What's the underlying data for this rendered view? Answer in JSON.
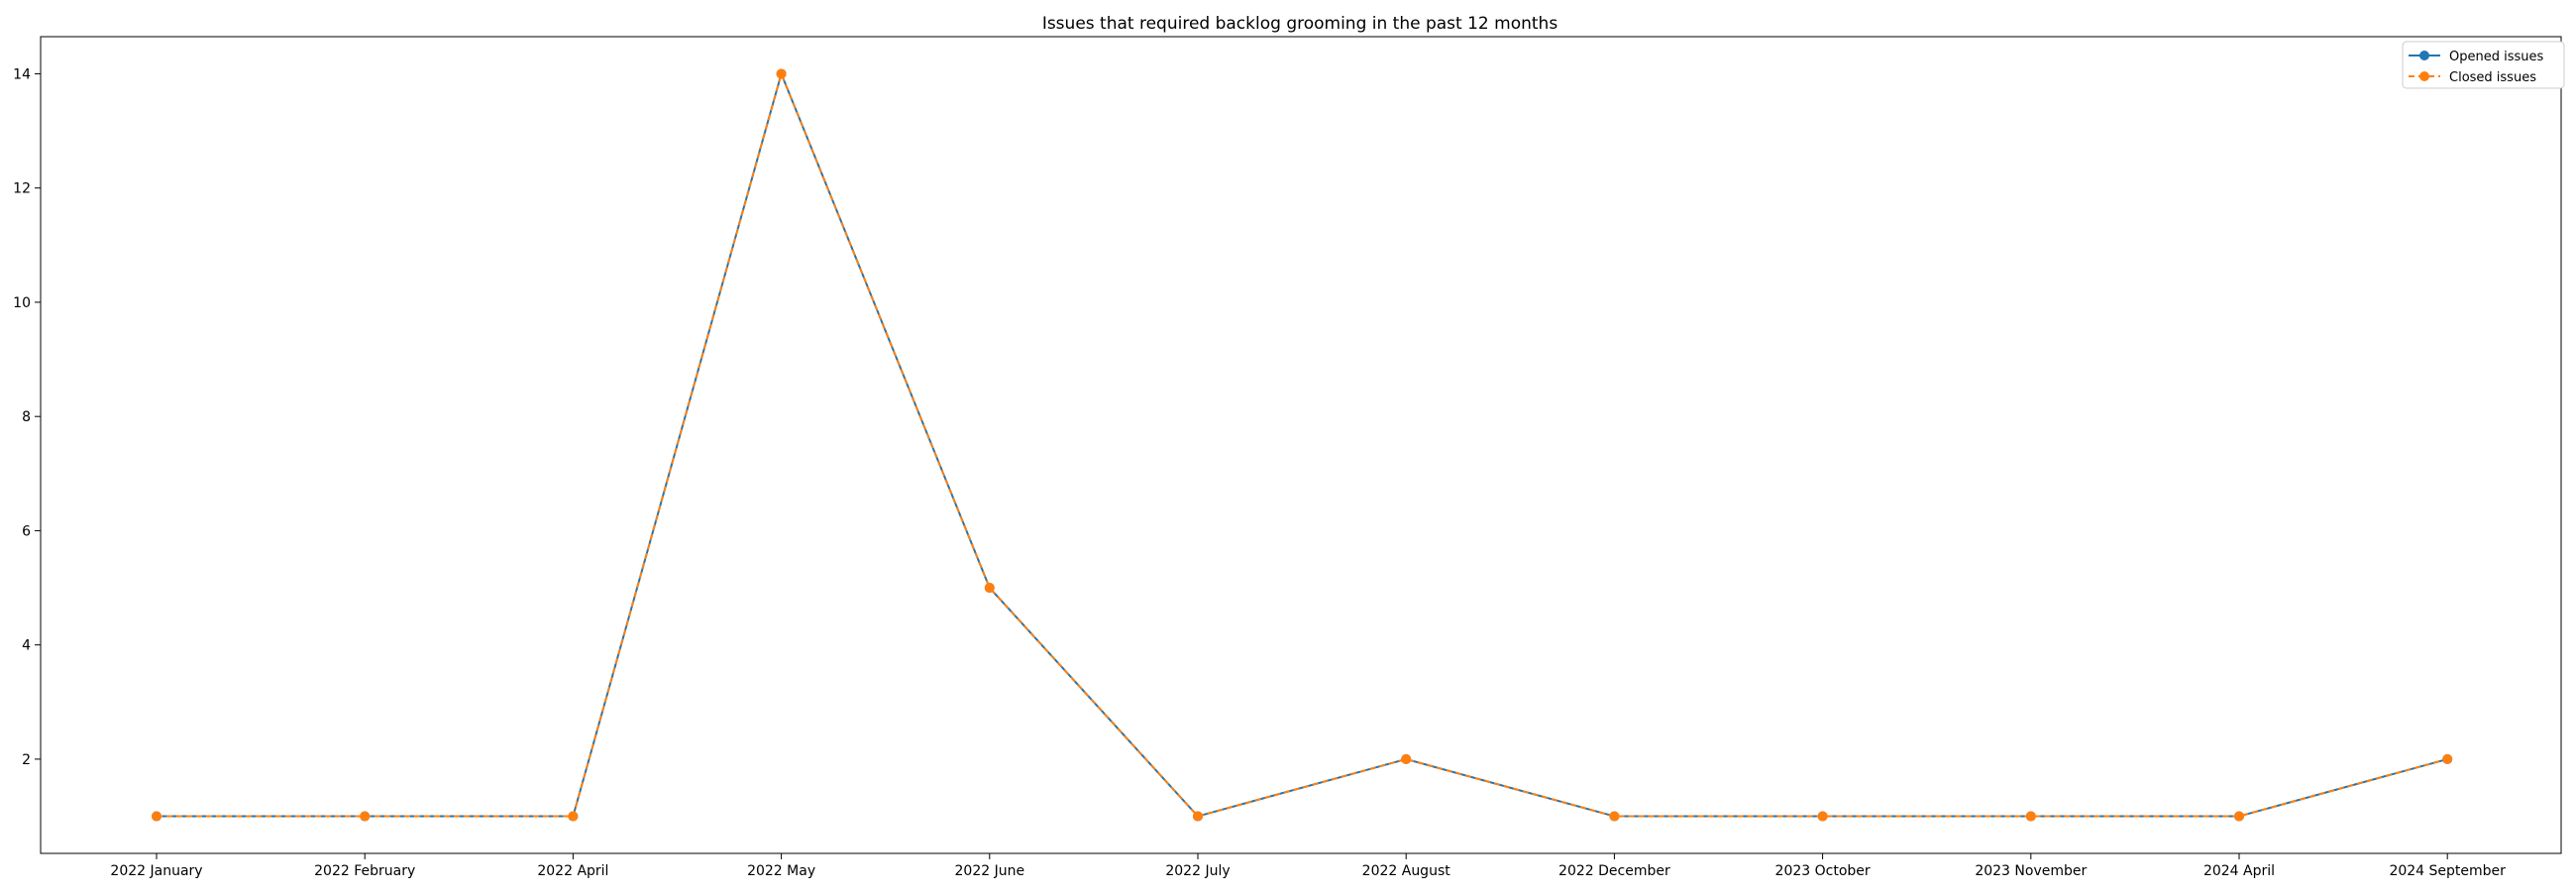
{
  "chart_data": {
    "type": "line",
    "title": "Issues that required backlog grooming in the past 12 months",
    "xlabel": "",
    "ylabel": "",
    "categories": [
      "2022 January",
      "2022 February",
      "2022 April",
      "2022 May",
      "2022 June",
      "2022 July",
      "2022 August",
      "2022 December",
      "2023 October",
      "2023 November",
      "2024 April",
      "2024 September"
    ],
    "series": [
      {
        "name": "Opened issues",
        "values": [
          1,
          1,
          1,
          14,
          5,
          1,
          2,
          1,
          1,
          1,
          1,
          2
        ],
        "color": "#1f77b4",
        "line_style": "solid",
        "marker": "circle"
      },
      {
        "name": "Closed issues",
        "values": [
          1,
          1,
          1,
          14,
          5,
          1,
          2,
          1,
          1,
          1,
          1,
          2
        ],
        "color": "#ff7f0e",
        "line_style": "dashed",
        "marker": "circle"
      }
    ],
    "yticks": [
      2,
      4,
      6,
      8,
      10,
      12,
      14
    ],
    "ylim": [
      0.35,
      14.65
    ],
    "grid": false,
    "legend_position": "top-right"
  }
}
